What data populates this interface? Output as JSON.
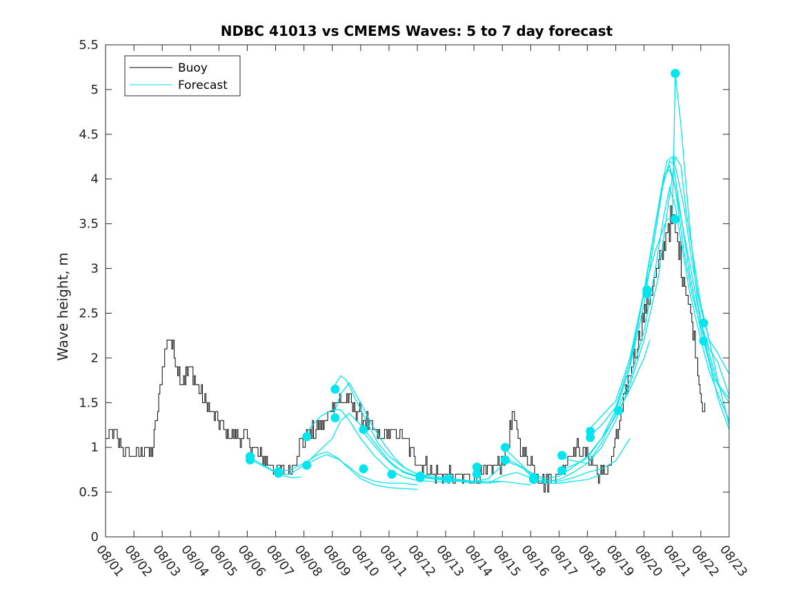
{
  "chart_data": {
    "type": "line",
    "title": "NDBC 41013 vs CMEMS Waves: 5 to 7 day forecast",
    "xlabel": "",
    "ylabel": "Wave height, m",
    "xlim": [
      0,
      22
    ],
    "ylim": [
      0,
      5.5
    ],
    "x_ticks": [
      0,
      1,
      2,
      3,
      4,
      5,
      6,
      7,
      8,
      9,
      10,
      11,
      12,
      13,
      14,
      15,
      16,
      17,
      18,
      19,
      20,
      21,
      22
    ],
    "x_tick_labels": [
      "08/01",
      "08/02",
      "08/03",
      "08/04",
      "08/05",
      "08/06",
      "08/07",
      "08/08",
      "08/09",
      "08/10",
      "08/11",
      "08/12",
      "08/13",
      "08/14",
      "08/15",
      "08/16",
      "08/17",
      "08/18",
      "08/19",
      "08/20",
      "08/21",
      "08/22",
      "08/23"
    ],
    "y_ticks": [
      0,
      0.5,
      1,
      1.5,
      2,
      2.5,
      3,
      3.5,
      4,
      4.5,
      5,
      5.5
    ],
    "y_tick_labels": [
      "0",
      "0.5",
      "1",
      "1.5",
      "2",
      "2.5",
      "3",
      "3.5",
      "4",
      "4.5",
      "5",
      "5.5"
    ],
    "legend": {
      "position": "top-left",
      "entries": [
        {
          "label": "Buoy",
          "color": "#000000"
        },
        {
          "label": "Forecast",
          "color": "#00e5ee"
        }
      ]
    },
    "colors": {
      "buoy": "#000000",
      "forecast": "#00e5ee",
      "axis": "#262626"
    },
    "buoy_anchors": [
      [
        0.0,
        1.1
      ],
      [
        0.3,
        1.15
      ],
      [
        0.6,
        1.0
      ],
      [
        0.9,
        0.9
      ],
      [
        1.2,
        0.88
      ],
      [
        1.4,
        1.0
      ],
      [
        1.6,
        0.9
      ],
      [
        1.75,
        1.2
      ],
      [
        1.9,
        1.6
      ],
      [
        2.05,
        2.0
      ],
      [
        2.2,
        2.25
      ],
      [
        2.3,
        2.2
      ],
      [
        2.5,
        1.95
      ],
      [
        2.7,
        1.75
      ],
      [
        2.9,
        1.85
      ],
      [
        3.1,
        1.8
      ],
      [
        3.3,
        1.6
      ],
      [
        3.5,
        1.5
      ],
      [
        3.7,
        1.4
      ],
      [
        3.9,
        1.3
      ],
      [
        4.1,
        1.25
      ],
      [
        4.3,
        1.15
      ],
      [
        4.6,
        1.1
      ],
      [
        4.9,
        1.1
      ],
      [
        5.1,
        1.05
      ],
      [
        5.3,
        0.95
      ],
      [
        5.6,
        0.85
      ],
      [
        5.9,
        0.78
      ],
      [
        6.2,
        0.72
      ],
      [
        6.5,
        0.75
      ],
      [
        6.7,
        0.9
      ],
      [
        6.9,
        1.05
      ],
      [
        7.2,
        1.15
      ],
      [
        7.5,
        1.2
      ],
      [
        7.8,
        1.3
      ],
      [
        8.1,
        1.55
      ],
      [
        8.3,
        1.5
      ],
      [
        8.5,
        1.55
      ],
      [
        8.7,
        1.45
      ],
      [
        9.0,
        1.35
      ],
      [
        9.3,
        1.25
      ],
      [
        9.6,
        1.1
      ],
      [
        9.9,
        1.15
      ],
      [
        10.2,
        1.15
      ],
      [
        10.5,
        1.1
      ],
      [
        10.8,
        0.95
      ],
      [
        11.1,
        0.85
      ],
      [
        11.4,
        0.75
      ],
      [
        11.7,
        0.7
      ],
      [
        12.0,
        0.68
      ],
      [
        12.3,
        0.68
      ],
      [
        12.6,
        0.65
      ],
      [
        12.9,
        0.65
      ],
      [
        13.2,
        0.68
      ],
      [
        13.5,
        0.72
      ],
      [
        13.8,
        0.8
      ],
      [
        14.0,
        0.85
      ],
      [
        14.2,
        1.05
      ],
      [
        14.35,
        1.35
      ],
      [
        14.5,
        1.2
      ],
      [
        14.7,
        0.95
      ],
      [
        15.0,
        0.85
      ],
      [
        15.3,
        0.7
      ],
      [
        15.5,
        0.6
      ],
      [
        15.7,
        0.65
      ],
      [
        16.0,
        0.7
      ],
      [
        16.3,
        0.9
      ],
      [
        16.6,
        1.0
      ],
      [
        16.9,
        0.95
      ],
      [
        17.1,
        0.85
      ],
      [
        17.3,
        0.75
      ],
      [
        17.5,
        0.68
      ],
      [
        17.8,
        0.82
      ],
      [
        18.1,
        1.2
      ],
      [
        18.4,
        1.7
      ],
      [
        18.7,
        2.1
      ],
      [
        19.0,
        2.5
      ],
      [
        19.3,
        2.8
      ],
      [
        19.6,
        3.1
      ],
      [
        19.8,
        3.45
      ],
      [
        20.0,
        3.55
      ],
      [
        20.15,
        3.35
      ],
      [
        20.3,
        3.05
      ],
      [
        20.5,
        2.75
      ],
      [
        20.7,
        2.35
      ],
      [
        20.9,
        1.85
      ],
      [
        21.05,
        1.5
      ],
      [
        21.15,
        1.42
      ]
    ],
    "forecast_series": [
      [
        [
          5.0,
          0.9
        ],
        [
          5.3,
          0.85
        ],
        [
          5.7,
          0.78
        ],
        [
          6.0,
          0.72
        ],
        [
          6.3,
          0.68
        ],
        [
          6.6,
          0.66
        ],
        [
          6.9,
          0.67
        ]
      ],
      [
        [
          5.0,
          0.88
        ],
        [
          5.5,
          0.8
        ],
        [
          6.0,
          0.72
        ],
        [
          6.5,
          0.75
        ],
        [
          7.0,
          0.82
        ],
        [
          7.5,
          0.92
        ],
        [
          7.8,
          0.95
        ],
        [
          8.2,
          0.88
        ],
        [
          8.6,
          0.76
        ],
        [
          9.0,
          0.65
        ],
        [
          9.5,
          0.58
        ],
        [
          10.0,
          0.55
        ],
        [
          10.5,
          0.54
        ],
        [
          11.0,
          0.53
        ]
      ],
      [
        [
          6.0,
          0.7
        ],
        [
          6.5,
          0.7
        ],
        [
          7.0,
          0.8
        ],
        [
          7.5,
          0.88
        ],
        [
          7.8,
          0.92
        ],
        [
          8.2,
          0.87
        ],
        [
          8.6,
          0.78
        ],
        [
          9.0,
          0.68
        ],
        [
          9.5,
          0.62
        ],
        [
          10.0,
          0.6
        ],
        [
          10.5,
          0.6
        ],
        [
          11.0,
          0.58
        ]
      ],
      [
        [
          7.0,
          1.12
        ],
        [
          7.3,
          1.25
        ],
        [
          7.6,
          1.35
        ],
        [
          8.0,
          1.42
        ],
        [
          8.3,
          1.42
        ],
        [
          8.6,
          1.3
        ],
        [
          9.0,
          1.1
        ],
        [
          9.5,
          0.9
        ],
        [
          10.0,
          0.75
        ],
        [
          10.5,
          0.67
        ],
        [
          11.0,
          0.63
        ],
        [
          11.5,
          0.62
        ],
        [
          12.0,
          0.61
        ]
      ],
      [
        [
          7.0,
          0.8
        ],
        [
          7.5,
          0.95
        ],
        [
          8.0,
          1.1
        ],
        [
          8.3,
          1.3
        ],
        [
          8.6,
          1.38
        ],
        [
          9.0,
          1.25
        ],
        [
          9.5,
          1.05
        ],
        [
          10.0,
          0.85
        ],
        [
          10.5,
          0.72
        ],
        [
          11.0,
          0.67
        ],
        [
          11.5,
          0.65
        ],
        [
          12.0,
          0.63
        ],
        [
          12.5,
          0.62
        ],
        [
          13.0,
          0.6
        ]
      ],
      [
        [
          8.0,
          1.65
        ],
        [
          8.3,
          1.8
        ],
        [
          8.5,
          1.75
        ],
        [
          8.8,
          1.55
        ],
        [
          9.2,
          1.3
        ],
        [
          9.6,
          1.05
        ],
        [
          10.0,
          0.9
        ],
        [
          10.5,
          0.78
        ],
        [
          11.0,
          0.7
        ],
        [
          11.5,
          0.66
        ],
        [
          12.0,
          0.64
        ],
        [
          13.0,
          0.62
        ],
        [
          13.5,
          0.6
        ]
      ],
      [
        [
          8.0,
          1.33
        ],
        [
          8.3,
          1.6
        ],
        [
          8.6,
          1.72
        ],
        [
          9.0,
          1.5
        ],
        [
          9.4,
          1.25
        ],
        [
          9.8,
          1.05
        ],
        [
          10.2,
          0.88
        ],
        [
          10.6,
          0.76
        ],
        [
          11.0,
          0.7
        ],
        [
          11.5,
          0.66
        ],
        [
          12.0,
          0.63
        ],
        [
          13.0,
          0.62
        ],
        [
          14.0,
          0.62
        ]
      ],
      [
        [
          9.0,
          1.2
        ],
        [
          9.4,
          1.05
        ],
        [
          9.8,
          0.9
        ],
        [
          10.2,
          0.78
        ],
        [
          10.6,
          0.72
        ],
        [
          11.0,
          0.68
        ],
        [
          11.5,
          0.66
        ],
        [
          12.0,
          0.65
        ],
        [
          12.5,
          0.64
        ],
        [
          13.0,
          0.62
        ],
        [
          13.5,
          0.6
        ],
        [
          14.0,
          0.62
        ],
        [
          14.5,
          0.6
        ],
        [
          15.0,
          0.58
        ]
      ],
      [
        [
          11.0,
          0.7
        ],
        [
          11.5,
          0.68
        ],
        [
          12.0,
          0.66
        ],
        [
          12.5,
          0.63
        ],
        [
          13.0,
          0.61
        ],
        [
          13.5,
          0.6
        ],
        [
          14.0,
          0.68
        ],
        [
          14.5,
          0.72
        ],
        [
          15.0,
          0.66
        ],
        [
          15.5,
          0.6
        ],
        [
          16.0,
          0.6
        ],
        [
          16.5,
          0.62
        ]
      ],
      [
        [
          13.0,
          0.62
        ],
        [
          13.5,
          0.65
        ],
        [
          14.0,
          0.8
        ],
        [
          14.3,
          0.85
        ],
        [
          14.7,
          0.78
        ],
        [
          15.0,
          0.68
        ],
        [
          15.5,
          0.6
        ],
        [
          16.0,
          0.6
        ],
        [
          16.5,
          0.62
        ],
        [
          17.0,
          0.64
        ],
        [
          17.5,
          0.7
        ]
      ],
      [
        [
          14.0,
          1.0
        ],
        [
          14.3,
          0.92
        ],
        [
          14.7,
          0.8
        ],
        [
          15.0,
          0.7
        ],
        [
          15.5,
          0.63
        ],
        [
          16.0,
          0.62
        ],
        [
          16.5,
          0.66
        ],
        [
          17.0,
          0.72
        ],
        [
          17.5,
          0.76
        ],
        [
          18.0,
          0.85
        ],
        [
          18.5,
          1.1
        ]
      ],
      [
        [
          14.0,
          0.86
        ],
        [
          14.5,
          0.8
        ],
        [
          15.0,
          0.72
        ],
        [
          15.5,
          0.65
        ],
        [
          16.0,
          0.68
        ],
        [
          16.5,
          0.78
        ],
        [
          17.0,
          0.9
        ],
        [
          17.5,
          1.1
        ],
        [
          18.0,
          1.35
        ],
        [
          18.5,
          1.65
        ],
        [
          19.0,
          2.0
        ],
        [
          19.2,
          2.2
        ]
      ],
      [
        [
          15.0,
          0.65
        ],
        [
          15.5,
          0.62
        ],
        [
          16.0,
          0.64
        ],
        [
          16.5,
          0.72
        ],
        [
          17.0,
          0.82
        ],
        [
          17.5,
          1.0
        ],
        [
          18.0,
          1.3
        ],
        [
          18.5,
          1.7
        ],
        [
          19.0,
          2.2
        ],
        [
          19.5,
          2.9
        ],
        [
          19.8,
          3.6
        ],
        [
          20.1,
          4.25
        ],
        [
          20.3,
          4.15
        ],
        [
          20.5,
          3.6
        ],
        [
          20.8,
          3.0
        ],
        [
          21.0,
          2.6
        ],
        [
          21.3,
          2.2
        ],
        [
          21.6,
          2.05
        ],
        [
          22.0,
          1.82
        ]
      ],
      [
        [
          16.0,
          0.9
        ],
        [
          16.5,
          0.85
        ],
        [
          17.0,
          0.82
        ],
        [
          17.5,
          1.05
        ],
        [
          18.0,
          1.38
        ],
        [
          18.5,
          1.75
        ],
        [
          19.0,
          2.3
        ],
        [
          19.4,
          3.0
        ],
        [
          19.7,
          3.6
        ],
        [
          19.9,
          3.9
        ],
        [
          20.1,
          3.7
        ],
        [
          20.3,
          3.3
        ],
        [
          20.6,
          2.75
        ],
        [
          21.0,
          2.2
        ],
        [
          21.3,
          1.85
        ],
        [
          21.6,
          1.6
        ],
        [
          22.0,
          1.3
        ]
      ],
      [
        [
          16.0,
          0.74
        ],
        [
          16.5,
          0.8
        ],
        [
          17.0,
          0.88
        ],
        [
          17.5,
          1.1
        ],
        [
          18.0,
          1.42
        ],
        [
          18.5,
          1.9
        ],
        [
          19.0,
          2.6
        ],
        [
          19.4,
          3.4
        ],
        [
          19.7,
          4.0
        ],
        [
          19.9,
          4.15
        ],
        [
          20.1,
          3.9
        ],
        [
          20.4,
          3.2
        ],
        [
          20.7,
          2.7
        ],
        [
          21.0,
          2.35
        ],
        [
          21.3,
          2.05
        ],
        [
          21.6,
          1.7
        ],
        [
          22.0,
          1.5
        ]
      ],
      [
        [
          17.0,
          1.18
        ],
        [
          17.5,
          1.35
        ],
        [
          18.0,
          1.52
        ],
        [
          18.5,
          2.0
        ],
        [
          19.0,
          2.75
        ],
        [
          19.4,
          3.5
        ],
        [
          19.7,
          4.05
        ],
        [
          19.9,
          4.1
        ],
        [
          20.1,
          3.9
        ],
        [
          20.4,
          3.4
        ],
        [
          20.7,
          2.9
        ],
        [
          21.0,
          2.4
        ],
        [
          21.3,
          2.1
        ],
        [
          21.6,
          1.95
        ],
        [
          22.0,
          1.58
        ]
      ],
      [
        [
          17.0,
          1.1
        ],
        [
          17.5,
          1.25
        ],
        [
          18.0,
          1.45
        ],
        [
          18.5,
          1.95
        ],
        [
          19.0,
          2.72
        ],
        [
          19.3,
          3.3
        ],
        [
          19.6,
          3.85
        ],
        [
          19.9,
          4.2
        ],
        [
          20.1,
          4.15
        ],
        [
          20.4,
          3.7
        ],
        [
          20.7,
          3.05
        ],
        [
          21.0,
          2.55
        ],
        [
          21.3,
          2.2
        ],
        [
          21.6,
          1.75
        ],
        [
          22.0,
          1.25
        ]
      ],
      [
        [
          18.0,
          1.41
        ],
        [
          18.5,
          1.9
        ],
        [
          19.0,
          2.75
        ],
        [
          19.4,
          3.5
        ],
        [
          19.8,
          4.2
        ],
        [
          20.0,
          4.25
        ],
        [
          20.2,
          3.8
        ],
        [
          20.6,
          2.95
        ],
        [
          21.0,
          2.3
        ],
        [
          21.3,
          1.95
        ],
        [
          21.6,
          1.55
        ],
        [
          22.0,
          1.2
        ]
      ],
      [
        [
          19.0,
          2.75
        ],
        [
          19.4,
          3.2
        ],
        [
          19.8,
          3.55
        ],
        [
          20.0,
          3.55
        ],
        [
          20.1,
          5.18
        ],
        [
          20.3,
          4.6
        ],
        [
          20.6,
          3.5
        ],
        [
          20.9,
          2.6
        ],
        [
          21.2,
          2.1
        ],
        [
          21.5,
          1.75
        ],
        [
          22.0,
          1.55
        ]
      ]
    ],
    "forecast_points": [
      [
        5.1,
        0.9
      ],
      [
        5.1,
        0.86
      ],
      [
        6.1,
        0.73
      ],
      [
        6.1,
        0.71
      ],
      [
        7.1,
        0.8
      ],
      [
        7.1,
        1.12
      ],
      [
        8.1,
        1.65
      ],
      [
        8.1,
        1.33
      ],
      [
        9.1,
        1.2
      ],
      [
        9.1,
        0.76
      ],
      [
        10.1,
        0.7
      ],
      [
        11.1,
        0.68
      ],
      [
        11.1,
        0.66
      ],
      [
        12.1,
        0.65
      ],
      [
        13.1,
        0.78
      ],
      [
        13.1,
        0.7
      ],
      [
        14.1,
        1.0
      ],
      [
        14.1,
        0.86
      ],
      [
        15.1,
        0.66
      ],
      [
        15.1,
        0.64
      ],
      [
        16.1,
        0.91
      ],
      [
        16.1,
        0.74
      ],
      [
        17.1,
        1.18
      ],
      [
        17.1,
        1.11
      ],
      [
        18.1,
        1.41
      ],
      [
        19.1,
        2.76
      ],
      [
        19.1,
        2.72
      ],
      [
        20.1,
        5.18
      ],
      [
        20.1,
        3.55
      ],
      [
        21.1,
        2.39
      ],
      [
        21.1,
        2.19
      ]
    ]
  }
}
